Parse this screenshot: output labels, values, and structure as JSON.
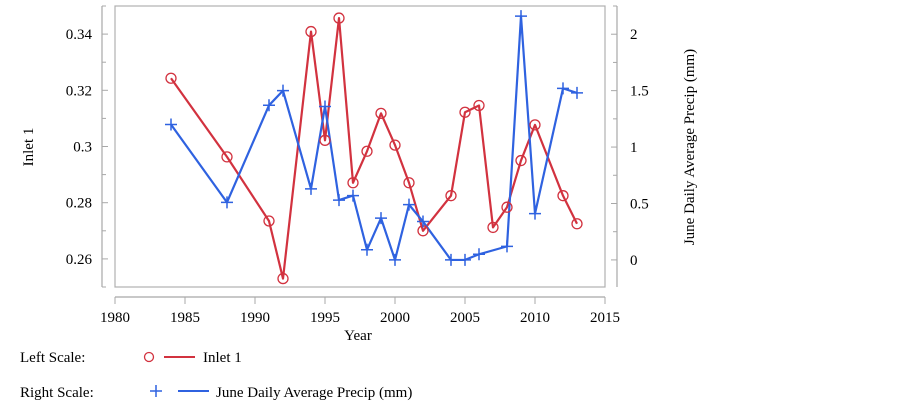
{
  "chart_data": {
    "type": "line",
    "title": "",
    "xlabel": "Year",
    "ylabel_left": "Inlet 1",
    "ylabel_right": "June Daily Average Precip (mm)",
    "xlim": [
      1980,
      2015
    ],
    "ylim_left": [
      0.25,
      0.35
    ],
    "ylim_right": [
      -0.24,
      2.25
    ],
    "x_ticks": [
      1980,
      1985,
      1990,
      1995,
      2000,
      2005,
      2010,
      2015
    ],
    "y_ticks_left": [
      0.26,
      0.28,
      0.3,
      0.32,
      0.34
    ],
    "y_ticks_right": [
      0,
      0.5,
      1,
      1.5,
      2
    ],
    "grid": false,
    "legend_position": "bottom",
    "legend": [
      {
        "scale_label": "Left Scale:",
        "name": "Inlet 1",
        "marker": "circle",
        "color": "#d2323f"
      },
      {
        "scale_label": "Right Scale:",
        "name": "June Daily Average Precip (mm)",
        "marker": "plus",
        "color": "#2f62e0"
      }
    ],
    "series": [
      {
        "name": "Inlet 1",
        "axis": "left",
        "color": "#d2323f",
        "marker": "circle",
        "x": [
          1984,
          1988,
          1991,
          1992,
          1994,
          1995,
          1996,
          1997,
          1998,
          1999,
          2000,
          2001,
          2002,
          2004,
          2005,
          2006,
          2007,
          2008,
          2009,
          2010,
          2012,
          2013
        ],
        "values": [
          0.3243,
          0.2963,
          0.2735,
          0.253,
          0.3409,
          0.3022,
          0.3457,
          0.2871,
          0.2983,
          0.3118,
          0.3005,
          0.2871,
          0.27,
          0.2825,
          0.3122,
          0.3146,
          0.2712,
          0.2784,
          0.295,
          0.3077,
          0.2825,
          0.2725
        ]
      },
      {
        "name": "June Daily Average Precip (mm)",
        "axis": "right",
        "color": "#2f62e0",
        "marker": "plus",
        "x": [
          1984,
          1988,
          1991,
          1992,
          1994,
          1995,
          1996,
          1997,
          1998,
          1999,
          2000,
          2001,
          2002,
          2004,
          2005,
          2006,
          2008,
          2009,
          2010,
          2012,
          2013
        ],
        "values": [
          1.2,
          0.51,
          1.37,
          1.5,
          0.63,
          1.36,
          0.53,
          0.57,
          0.09,
          0.37,
          0,
          0.49,
          0.34,
          0,
          0,
          0.05,
          0.12,
          2.16,
          0.41,
          1.52,
          1.48
        ]
      }
    ]
  }
}
